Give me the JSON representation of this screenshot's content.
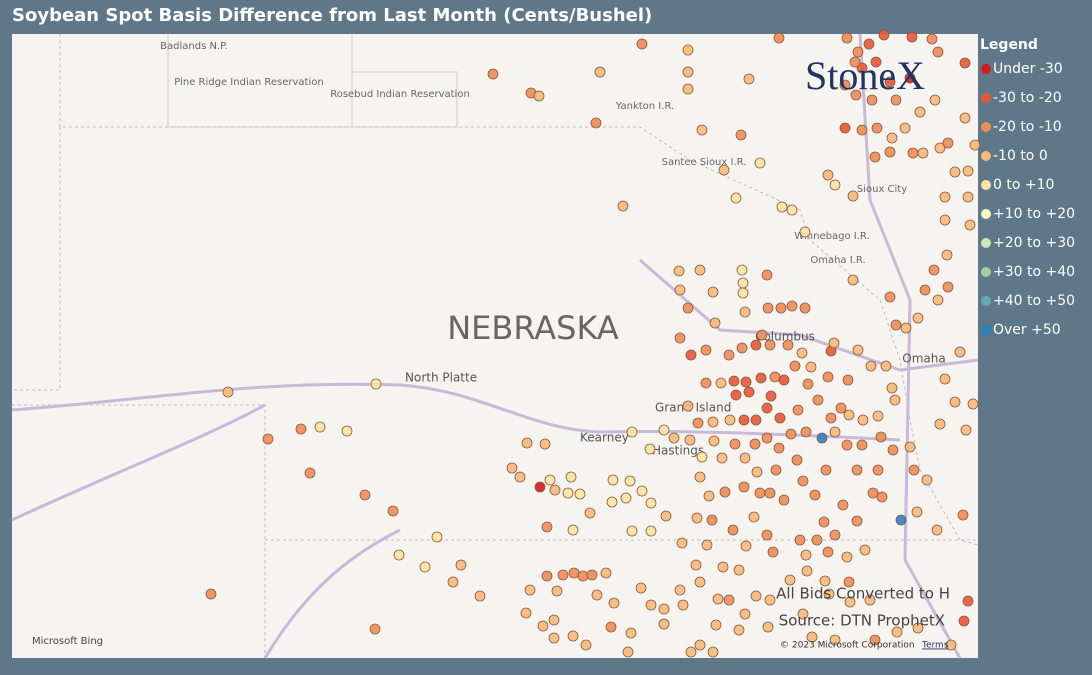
{
  "header": {
    "title": "Soybean Spot Basis Difference from Last Month (Cents/Bushel)"
  },
  "legend": {
    "title": "Legend",
    "items": [
      {
        "label": "Under -30",
        "color": "#d7191c"
      },
      {
        "label": "-30 to -20",
        "color": "#e8553a"
      },
      {
        "label": "-20 to -10",
        "color": "#f08c57"
      },
      {
        "label": "-10 to 0",
        "color": "#f7b97a"
      },
      {
        "label": "0 to +10",
        "color": "#fde3a0"
      },
      {
        "label": "+10 to +20",
        "color": "#fbf7c7"
      },
      {
        "label": "+20 to +30",
        "color": "#cde8b4"
      },
      {
        "label": "+30 to +40",
        "color": "#9fd19c"
      },
      {
        "label": "+40 to +50",
        "color": "#63aab2"
      },
      {
        "label": "Over +50",
        "color": "#2f7fc1"
      }
    ]
  },
  "logo": "StoneX",
  "map": {
    "state": "NEBRASKA",
    "places": [
      "Badlands N.P.",
      "Pine Ridge Indian Reservation",
      "Rosebud Indian Reservation",
      "Yankton I.R.",
      "Santee Sioux I.R.",
      "Sioux City",
      "Winnebago I.R.",
      "Omaha I.R.",
      "Columbus",
      "Omaha",
      "North Platte",
      "Grand Island",
      "Kearney",
      "Hastings"
    ],
    "notes": [
      "All Bids Converted to H",
      "Source: DTN ProphetX"
    ],
    "attribution": "Microsoft Bing",
    "copyright": "© 2023 Microsoft Corporation",
    "terms": "Terms"
  }
}
